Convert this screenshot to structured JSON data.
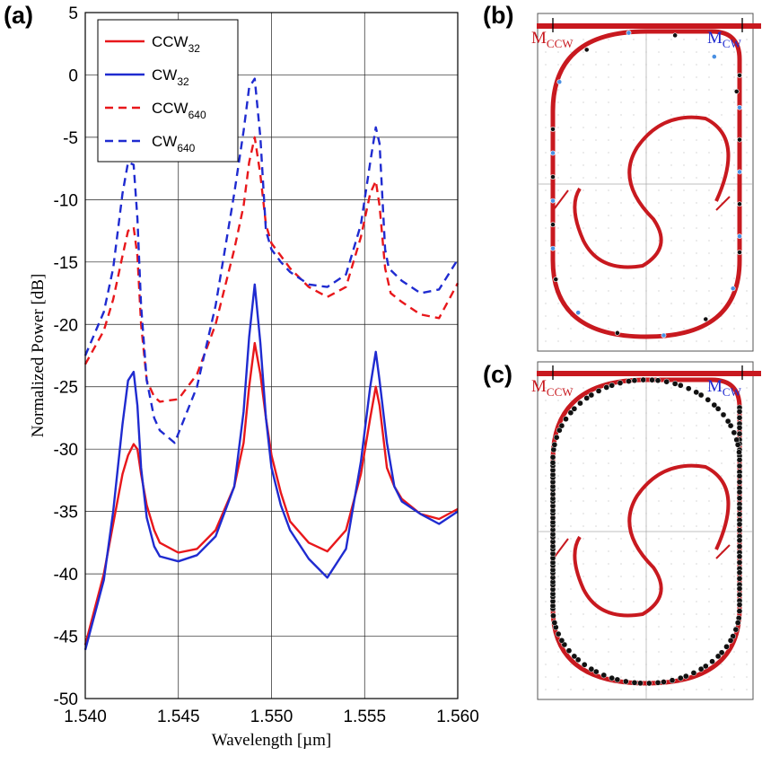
{
  "panels": {
    "a": "(a)",
    "b": "(b)",
    "c": "(c)"
  },
  "colors": {
    "ccw": "#e8171b",
    "cw": "#1f2bd0",
    "waveguide": "#c8191f",
    "node_blue": "#4a90e2",
    "node_black": "#111111"
  },
  "resonator_labels": {
    "m_ccw_main": "M",
    "m_ccw_sub": "CCW",
    "m_cw_main": "M",
    "m_cw_sub": "CW"
  },
  "chart_data": {
    "type": "line",
    "xlabel": "Wavelength [µm]",
    "ylabel": "Normalized Power [dB]",
    "xlim": [
      1.54,
      1.56
    ],
    "ylim": [
      -50,
      5
    ],
    "xticks": [
      "1.540",
      "1.545",
      "1.550",
      "1.555",
      "1.560"
    ],
    "yticks": [
      "5",
      "0",
      "-5",
      "-10",
      "-15",
      "-20",
      "-25",
      "-30",
      "-35",
      "-40",
      "-45",
      "-50"
    ],
    "grid": true,
    "legend_position": "top-left",
    "series": [
      {
        "name": "CCW",
        "name_sub": "32",
        "color": "#e8171b",
        "style": "solid",
        "x": [
          1.54,
          1.541,
          1.5415,
          1.542,
          1.5423,
          1.5426,
          1.5428,
          1.543,
          1.5433,
          1.5437,
          1.544,
          1.545,
          1.546,
          1.547,
          1.548,
          1.5485,
          1.5488,
          1.5491,
          1.5494,
          1.5497,
          1.55,
          1.5505,
          1.551,
          1.552,
          1.553,
          1.554,
          1.5548,
          1.5553,
          1.5556,
          1.5558,
          1.5562,
          1.5566,
          1.557,
          1.558,
          1.559,
          1.56
        ],
        "y": [
          -45.7,
          -40.0,
          -36.0,
          -32.0,
          -30.5,
          -29.6,
          -30.0,
          -32.0,
          -34.5,
          -36.5,
          -37.5,
          -38.3,
          -38.0,
          -36.5,
          -33.0,
          -29.5,
          -25.0,
          -21.5,
          -24.0,
          -27.5,
          -30.5,
          -33.5,
          -35.8,
          -37.5,
          -38.2,
          -36.5,
          -32.0,
          -27.5,
          -25.0,
          -26.5,
          -31.5,
          -33.0,
          -34.0,
          -35.2,
          -35.6,
          -34.8
        ]
      },
      {
        "name": "CW",
        "name_sub": "32",
        "color": "#1f2bd0",
        "style": "solid",
        "x": [
          1.54,
          1.541,
          1.5415,
          1.542,
          1.5423,
          1.5426,
          1.5428,
          1.543,
          1.5433,
          1.5437,
          1.544,
          1.545,
          1.546,
          1.547,
          1.548,
          1.5485,
          1.5488,
          1.5491,
          1.5494,
          1.5497,
          1.55,
          1.5505,
          1.551,
          1.552,
          1.553,
          1.554,
          1.5548,
          1.5553,
          1.5556,
          1.5558,
          1.5562,
          1.5566,
          1.557,
          1.558,
          1.559,
          1.56
        ],
        "y": [
          -46.1,
          -40.5,
          -35.0,
          -28.0,
          -24.5,
          -23.8,
          -26.5,
          -31.5,
          -35.5,
          -37.8,
          -38.6,
          -39.0,
          -38.5,
          -37.0,
          -33.0,
          -27.0,
          -21.0,
          -16.8,
          -21.5,
          -27.5,
          -31.5,
          -34.5,
          -36.5,
          -38.8,
          -40.3,
          -38.0,
          -31.0,
          -25.0,
          -22.2,
          -24.5,
          -29.5,
          -33.0,
          -34.2,
          -35.2,
          -36.0,
          -35.0
        ]
      },
      {
        "name": "CCW",
        "name_sub": "640",
        "color": "#e8171b",
        "style": "dashed",
        "x": [
          1.54,
          1.541,
          1.5415,
          1.542,
          1.5423,
          1.5426,
          1.5428,
          1.543,
          1.5433,
          1.5437,
          1.544,
          1.545,
          1.546,
          1.547,
          1.548,
          1.5485,
          1.5488,
          1.5491,
          1.5494,
          1.5497,
          1.55,
          1.5505,
          1.551,
          1.552,
          1.553,
          1.554,
          1.5548,
          1.5553,
          1.5556,
          1.5558,
          1.5561,
          1.5564,
          1.557,
          1.558,
          1.559,
          1.56
        ],
        "y": [
          -23.2,
          -20.5,
          -18.0,
          -14.5,
          -12.5,
          -12.2,
          -14.5,
          -20.0,
          -24.5,
          -25.8,
          -26.2,
          -26.0,
          -24.0,
          -20.0,
          -14.0,
          -10.5,
          -7.0,
          -5.0,
          -8.0,
          -12.0,
          -13.5,
          -14.5,
          -15.5,
          -17.0,
          -17.8,
          -17.0,
          -13.0,
          -9.5,
          -8.5,
          -10.5,
          -15.5,
          -17.5,
          -18.2,
          -19.2,
          -19.5,
          -16.7
        ]
      },
      {
        "name": "CW",
        "name_sub": "640",
        "color": "#1f2bd0",
        "style": "dashed",
        "x": [
          1.54,
          1.541,
          1.5415,
          1.542,
          1.5423,
          1.5426,
          1.5428,
          1.543,
          1.5433,
          1.5437,
          1.544,
          1.5448,
          1.546,
          1.547,
          1.548,
          1.5485,
          1.5488,
          1.5491,
          1.5494,
          1.5497,
          1.55,
          1.5505,
          1.551,
          1.552,
          1.553,
          1.554,
          1.5548,
          1.5553,
          1.5556,
          1.5558,
          1.5561,
          1.5563,
          1.557,
          1.558,
          1.559,
          1.56
        ],
        "y": [
          -22.5,
          -19.0,
          -15.5,
          -9.5,
          -7.0,
          -7.2,
          -11.5,
          -18.5,
          -24.5,
          -27.5,
          -28.5,
          -29.5,
          -25.0,
          -18.5,
          -9.5,
          -4.5,
          -1.0,
          -0.3,
          -5.0,
          -12.5,
          -14.0,
          -15.0,
          -15.8,
          -16.8,
          -17.0,
          -16.0,
          -12.0,
          -7.0,
          -4.2,
          -5.5,
          -14.0,
          -15.5,
          -16.5,
          -17.5,
          -17.2,
          -14.8
        ]
      }
    ]
  }
}
